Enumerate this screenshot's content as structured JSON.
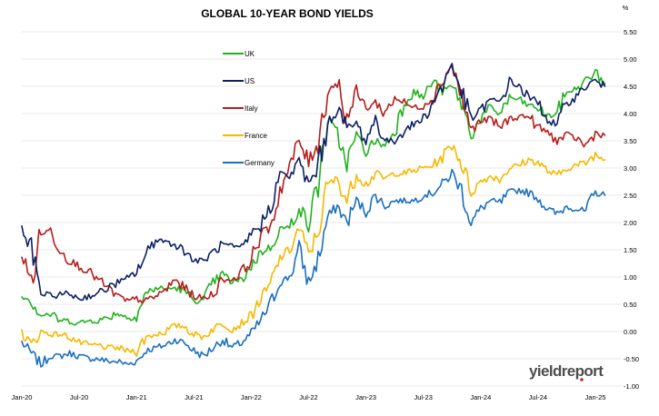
{
  "chart_data": {
    "type": "line",
    "title": "GLOBAL 10-YEAR BOND YIELDS",
    "unit_label": "%",
    "xlabel": "",
    "ylabel": "",
    "x_ticks": [
      "Jan-20",
      "Jul-20",
      "Jan-21",
      "Jul-21",
      "Jan-22",
      "Jul-22",
      "Jan-23",
      "Jul-23",
      "Jan-24",
      "Jul-24",
      "Jan-25"
    ],
    "y_ticks": [
      "5.50",
      "5.00",
      "4.50",
      "4.00",
      "3.50",
      "3.00",
      "2.50",
      "2.00",
      "1.50",
      "1.00",
      "0.50",
      "0.00",
      "-0.50",
      "-1.00"
    ],
    "ylim": [
      -1.0,
      5.5
    ],
    "grid": "horizontal",
    "legend_position": "top-left",
    "series": [
      {
        "name": "UK",
        "color": "#22b21e",
        "x": [
          "2020-01",
          "2020-02",
          "2020-03",
          "2020-04",
          "2020-05",
          "2020-06",
          "2020-07",
          "2020-08",
          "2020-09",
          "2020-10",
          "2020-11",
          "2020-12",
          "2021-01",
          "2021-02",
          "2021-03",
          "2021-04",
          "2021-05",
          "2021-06",
          "2021-07",
          "2021-08",
          "2021-09",
          "2021-10",
          "2021-11",
          "2021-12",
          "2022-01",
          "2022-02",
          "2022-03",
          "2022-04",
          "2022-05",
          "2022-06",
          "2022-07",
          "2022-08",
          "2022-09",
          "2022-10",
          "2022-11",
          "2022-12",
          "2023-01",
          "2023-02",
          "2023-03",
          "2023-04",
          "2023-05",
          "2023-06",
          "2023-07",
          "2023-08",
          "2023-09",
          "2023-10",
          "2023-11",
          "2023-12",
          "2024-01",
          "2024-02",
          "2024-03",
          "2024-04",
          "2024-05",
          "2024-06",
          "2024-07",
          "2024-08",
          "2024-09",
          "2024-10",
          "2024-11",
          "2024-12",
          "2025-01",
          "2025-02"
        ],
        "values": [
          0.7,
          0.55,
          0.3,
          0.32,
          0.2,
          0.2,
          0.15,
          0.2,
          0.2,
          0.25,
          0.35,
          0.25,
          0.28,
          0.7,
          0.8,
          0.78,
          0.8,
          0.75,
          0.58,
          0.55,
          0.9,
          1.05,
          0.9,
          0.95,
          1.2,
          1.45,
          1.55,
          1.9,
          1.9,
          2.3,
          1.95,
          2.75,
          3.9,
          3.6,
          3.1,
          3.6,
          3.3,
          3.5,
          3.4,
          3.7,
          4.2,
          4.4,
          4.3,
          4.6,
          4.4,
          4.5,
          4.2,
          3.6,
          3.9,
          4.1,
          4.0,
          4.3,
          4.25,
          4.15,
          4.1,
          3.95,
          4.0,
          4.4,
          4.45,
          4.6,
          4.75,
          4.55
        ]
      },
      {
        "name": "US",
        "color": "#0d2064",
        "x": [
          "2020-01",
          "2020-02",
          "2020-03",
          "2020-04",
          "2020-05",
          "2020-06",
          "2020-07",
          "2020-08",
          "2020-09",
          "2020-10",
          "2020-11",
          "2020-12",
          "2021-01",
          "2021-02",
          "2021-03",
          "2021-04",
          "2021-05",
          "2021-06",
          "2021-07",
          "2021-08",
          "2021-09",
          "2021-10",
          "2021-11",
          "2021-12",
          "2022-01",
          "2022-02",
          "2022-03",
          "2022-04",
          "2022-05",
          "2022-06",
          "2022-07",
          "2022-08",
          "2022-09",
          "2022-10",
          "2022-11",
          "2022-12",
          "2023-01",
          "2023-02",
          "2023-03",
          "2023-04",
          "2023-05",
          "2023-06",
          "2023-07",
          "2023-08",
          "2023-09",
          "2023-10",
          "2023-11",
          "2023-12",
          "2024-01",
          "2024-02",
          "2024-03",
          "2024-04",
          "2024-05",
          "2024-06",
          "2024-07",
          "2024-08",
          "2024-09",
          "2024-10",
          "2024-11",
          "2024-12",
          "2025-01",
          "2025-02"
        ],
        "values": [
          1.85,
          1.5,
          0.7,
          0.65,
          0.68,
          0.7,
          0.6,
          0.65,
          0.7,
          0.8,
          0.9,
          0.95,
          1.1,
          1.4,
          1.7,
          1.65,
          1.6,
          1.5,
          1.3,
          1.3,
          1.45,
          1.6,
          1.55,
          1.5,
          1.8,
          1.95,
          2.3,
          2.9,
          2.85,
          3.1,
          2.7,
          3.0,
          3.8,
          4.1,
          3.75,
          3.8,
          3.5,
          3.9,
          3.5,
          3.5,
          3.7,
          3.8,
          3.9,
          4.2,
          4.5,
          4.9,
          4.4,
          3.9,
          4.05,
          4.25,
          4.2,
          4.6,
          4.5,
          4.3,
          4.2,
          3.9,
          3.75,
          4.2,
          4.3,
          4.5,
          4.6,
          4.5
        ]
      },
      {
        "name": "Italy",
        "color": "#b71c1c",
        "x": [
          "2020-01",
          "2020-02",
          "2020-03",
          "2020-04",
          "2020-05",
          "2020-06",
          "2020-07",
          "2020-08",
          "2020-09",
          "2020-10",
          "2020-11",
          "2020-12",
          "2021-01",
          "2021-02",
          "2021-03",
          "2021-04",
          "2021-05",
          "2021-06",
          "2021-07",
          "2021-08",
          "2021-09",
          "2021-10",
          "2021-11",
          "2021-12",
          "2022-01",
          "2022-02",
          "2022-03",
          "2022-04",
          "2022-05",
          "2022-06",
          "2022-07",
          "2022-08",
          "2022-09",
          "2022-10",
          "2022-11",
          "2022-12",
          "2023-01",
          "2023-02",
          "2023-03",
          "2023-04",
          "2023-05",
          "2023-06",
          "2023-07",
          "2023-08",
          "2023-09",
          "2023-10",
          "2023-11",
          "2023-12",
          "2024-01",
          "2024-02",
          "2024-03",
          "2024-04",
          "2024-05",
          "2024-06",
          "2024-07",
          "2024-08",
          "2024-09",
          "2024-10",
          "2024-11",
          "2024-12",
          "2025-01",
          "2025-02"
        ],
        "values": [
          1.4,
          0.9,
          1.8,
          1.85,
          1.5,
          1.3,
          1.2,
          1.1,
          0.95,
          0.8,
          0.65,
          0.55,
          0.6,
          0.55,
          0.65,
          0.75,
          0.95,
          0.8,
          0.65,
          0.6,
          0.7,
          0.95,
          0.95,
          1.1,
          1.3,
          1.8,
          1.9,
          2.6,
          3.0,
          3.5,
          3.1,
          3.5,
          4.4,
          4.6,
          3.9,
          4.4,
          4.1,
          4.2,
          4.0,
          4.3,
          4.2,
          4.1,
          4.15,
          4.3,
          4.6,
          4.9,
          4.3,
          3.7,
          3.85,
          3.9,
          3.75,
          3.9,
          3.95,
          3.95,
          3.75,
          3.65,
          3.5,
          3.6,
          3.55,
          3.4,
          3.65,
          3.6
        ]
      },
      {
        "name": "France",
        "color": "#f6b800",
        "x": [
          "2020-01",
          "2020-02",
          "2020-03",
          "2020-04",
          "2020-05",
          "2020-06",
          "2020-07",
          "2020-08",
          "2020-09",
          "2020-10",
          "2020-11",
          "2020-12",
          "2021-01",
          "2021-02",
          "2021-03",
          "2021-04",
          "2021-05",
          "2021-06",
          "2021-07",
          "2021-08",
          "2021-09",
          "2021-10",
          "2021-11",
          "2021-12",
          "2022-01",
          "2022-02",
          "2022-03",
          "2022-04",
          "2022-05",
          "2022-06",
          "2022-07",
          "2022-08",
          "2022-09",
          "2022-10",
          "2022-11",
          "2022-12",
          "2023-01",
          "2023-02",
          "2023-03",
          "2023-04",
          "2023-05",
          "2023-06",
          "2023-07",
          "2023-08",
          "2023-09",
          "2023-10",
          "2023-11",
          "2023-12",
          "2024-01",
          "2024-02",
          "2024-03",
          "2024-04",
          "2024-05",
          "2024-06",
          "2024-07",
          "2024-08",
          "2024-09",
          "2024-10",
          "2024-11",
          "2024-12",
          "2025-01",
          "2025-02"
        ],
        "values": [
          0.0,
          -0.25,
          0.0,
          -0.05,
          -0.05,
          -0.1,
          -0.2,
          -0.25,
          -0.25,
          -0.3,
          -0.3,
          -0.35,
          -0.35,
          -0.1,
          -0.05,
          0.0,
          0.1,
          0.1,
          -0.05,
          -0.1,
          0.05,
          0.15,
          0.05,
          0.15,
          0.3,
          0.6,
          0.85,
          1.35,
          1.5,
          1.9,
          1.4,
          1.85,
          2.7,
          2.8,
          2.4,
          2.9,
          2.7,
          2.9,
          2.8,
          2.9,
          2.9,
          2.95,
          3.0,
          3.05,
          3.2,
          3.45,
          3.1,
          2.55,
          2.75,
          2.85,
          2.8,
          3.0,
          3.05,
          3.15,
          3.1,
          2.95,
          2.85,
          3.0,
          3.05,
          3.1,
          3.25,
          3.15
        ]
      },
      {
        "name": "Germany",
        "color": "#1a6fbe",
        "x": [
          "2020-01",
          "2020-02",
          "2020-03",
          "2020-04",
          "2020-05",
          "2020-06",
          "2020-07",
          "2020-08",
          "2020-09",
          "2020-10",
          "2020-11",
          "2020-12",
          "2021-01",
          "2021-02",
          "2021-03",
          "2021-04",
          "2021-05",
          "2021-06",
          "2021-07",
          "2021-08",
          "2021-09",
          "2021-10",
          "2021-11",
          "2021-12",
          "2022-01",
          "2022-02",
          "2022-03",
          "2022-04",
          "2022-05",
          "2022-06",
          "2022-07",
          "2022-08",
          "2022-09",
          "2022-10",
          "2022-11",
          "2022-12",
          "2023-01",
          "2023-02",
          "2023-03",
          "2023-04",
          "2023-05",
          "2023-06",
          "2023-07",
          "2023-08",
          "2023-09",
          "2023-10",
          "2023-11",
          "2023-12",
          "2024-01",
          "2024-02",
          "2024-03",
          "2024-04",
          "2024-05",
          "2024-06",
          "2024-07",
          "2024-08",
          "2024-09",
          "2024-10",
          "2024-11",
          "2024-12",
          "2025-01",
          "2025-02"
        ],
        "values": [
          -0.2,
          -0.4,
          -0.6,
          -0.45,
          -0.45,
          -0.4,
          -0.45,
          -0.5,
          -0.5,
          -0.55,
          -0.55,
          -0.6,
          -0.55,
          -0.35,
          -0.3,
          -0.25,
          -0.15,
          -0.2,
          -0.35,
          -0.45,
          -0.3,
          -0.15,
          -0.3,
          -0.2,
          -0.05,
          0.2,
          0.5,
          0.9,
          1.0,
          1.5,
          0.9,
          1.3,
          2.1,
          2.3,
          2.0,
          2.4,
          2.2,
          2.5,
          2.3,
          2.4,
          2.4,
          2.4,
          2.5,
          2.55,
          2.7,
          2.9,
          2.6,
          2.0,
          2.25,
          2.4,
          2.35,
          2.55,
          2.6,
          2.55,
          2.45,
          2.25,
          2.15,
          2.3,
          2.25,
          2.2,
          2.55,
          2.5
        ]
      }
    ]
  },
  "watermark": {
    "brand_text": "yieldreport",
    "colors": {
      "text": "#4d4d4d",
      "accent": "#c62828"
    }
  }
}
